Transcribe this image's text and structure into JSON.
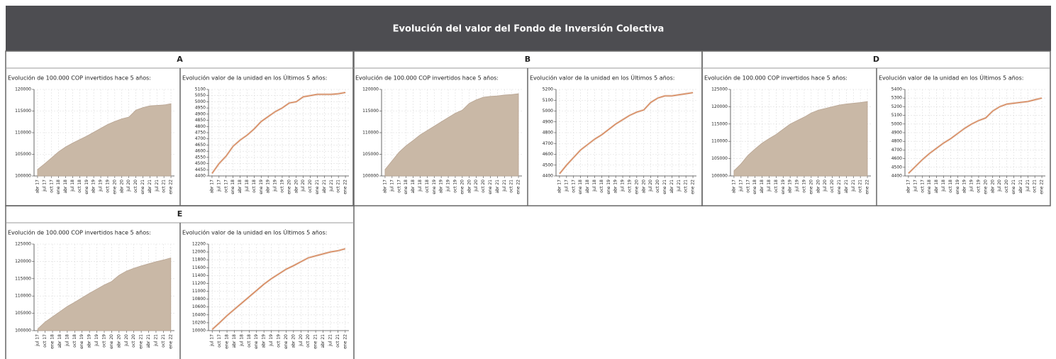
{
  "title": "Evolución del valor del Fondo de Inversión Colectiva",
  "panels": [
    {
      "label": "A",
      "charts": [
        {
          "type": "area",
          "title": "Evolución de 100.000 COP invertidos hace 5 años:",
          "color": "#c9b8a6",
          "grid": true,
          "categories": [
            "abr 17",
            "jul 17",
            "oct 17",
            "ene 18",
            "abr 18",
            "jul 18",
            "oct 18",
            "ene 19",
            "abr 19",
            "jul 19",
            "oct 19",
            "ene 20",
            "abr 20",
            "jul 20",
            "oct 20",
            "ene 21",
            "abr 21",
            "jul 21",
            "oct 21",
            "ene 22"
          ],
          "values": [
            101500,
            102800,
            104200,
            105600,
            106700,
            107600,
            108400,
            109200,
            110100,
            111000,
            111900,
            112600,
            113200,
            113600,
            115200,
            115800,
            116200,
            116300,
            116400,
            116700
          ],
          "ylim": [
            100000,
            120000
          ],
          "yticks": [
            100000,
            105000,
            110000,
            115000,
            120000
          ]
        },
        {
          "type": "line",
          "title": "Evolución valor de la unidad en los Últimos 5 años:",
          "color": "#d5733f",
          "grid": true,
          "categories": [
            "abr 17",
            "jul 17",
            "oct 17",
            "ene 18",
            "abr 18",
            "jul 18",
            "oct 18",
            "ene 19",
            "abr 19",
            "jul 19",
            "oct 19",
            "ene 20",
            "abr 20",
            "jul 20",
            "oct 20",
            "ene 21",
            "abr 21",
            "jul 21",
            "oct 21",
            "ene 22"
          ],
          "values": [
            4420,
            4500,
            4560,
            4640,
            4690,
            4730,
            4780,
            4840,
            4880,
            4920,
            4950,
            4990,
            5000,
            5040,
            5050,
            5060,
            5060,
            5060,
            5065,
            5075
          ],
          "ylim": [
            4400,
            5100
          ],
          "yticks": [
            4400,
            4450,
            4500,
            4550,
            4600,
            4650,
            4700,
            4750,
            4800,
            4850,
            4900,
            4950,
            5000,
            5050,
            5100
          ]
        }
      ]
    },
    {
      "label": "B",
      "charts": [
        {
          "type": "area",
          "title": "Evolución de 100.000 COP invertidos hace 5 años:",
          "color": "#c9b8a6",
          "grid": true,
          "categories": [
            "abr 17",
            "jul 17",
            "oct 17",
            "ene 18",
            "abr 18",
            "jul 18",
            "oct 18",
            "ene 19",
            "abr 19",
            "jul 19",
            "oct 19",
            "ene 20",
            "abr 20",
            "jul 20",
            "oct 20",
            "ene 21",
            "abr 21",
            "jul 21",
            "oct 21",
            "ene 22"
          ],
          "values": [
            101500,
            103500,
            105500,
            107000,
            108200,
            109500,
            110500,
            111500,
            112500,
            113500,
            114500,
            115200,
            116800,
            117600,
            118200,
            118400,
            118500,
            118700,
            118800,
            119000
          ],
          "ylim": [
            100000,
            120000
          ],
          "yticks": [
            100000,
            105000,
            110000,
            115000,
            120000
          ]
        },
        {
          "type": "line",
          "title": "Evolución valor de la unidad en los Últimos 5 años:",
          "color": "#d5733f",
          "grid": true,
          "categories": [
            "abr 17",
            "jul 17",
            "oct 17",
            "ene 18",
            "abr 18",
            "jul 18",
            "oct 18",
            "ene 19",
            "abr 19",
            "jul 19",
            "oct 19",
            "ene 20",
            "abr 20",
            "jul 20",
            "oct 20",
            "ene 21",
            "abr 21",
            "jul 21",
            "oct 21",
            "ene 22"
          ],
          "values": [
            4420,
            4500,
            4570,
            4640,
            4690,
            4740,
            4780,
            4830,
            4880,
            4920,
            4960,
            4990,
            5010,
            5080,
            5120,
            5140,
            5140,
            5150,
            5160,
            5170
          ],
          "ylim": [
            4400,
            5200
          ],
          "yticks": [
            4400,
            4500,
            4600,
            4700,
            4800,
            4900,
            5000,
            5100,
            5200
          ]
        }
      ]
    },
    {
      "label": "D",
      "charts": [
        {
          "type": "area",
          "title": "Evolución de 100.000 COP invertidos hace 5 años:",
          "color": "#c9b8a6",
          "grid": true,
          "categories": [
            "abr 17",
            "jul 17",
            "oct 17",
            "ene 18",
            "abr 18",
            "jul 18",
            "oct 18",
            "ene 19",
            "abr 19",
            "jul 19",
            "oct 19",
            "ene 20",
            "abr 20",
            "jul 20",
            "oct 20",
            "ene 21",
            "abr 21",
            "jul 21",
            "oct 21",
            "ene 22"
          ],
          "values": [
            101500,
            103500,
            106000,
            107800,
            109500,
            110800,
            112000,
            113500,
            115000,
            116000,
            117000,
            118200,
            119000,
            119500,
            120000,
            120500,
            120800,
            121000,
            121200,
            121500
          ],
          "ylim": [
            100000,
            125000
          ],
          "yticks": [
            100000,
            105000,
            110000,
            115000,
            120000,
            125000
          ]
        },
        {
          "type": "line",
          "title": "Evolución valor de la unidad en los Últimos 5 años:",
          "color": "#d5733f",
          "grid": true,
          "categories": [
            "abr 17",
            "jul 17",
            "oct 17",
            "ene 18",
            "abr 18",
            "jul 18",
            "oct 18",
            "ene 19",
            "abr 19",
            "jul 19",
            "oct 19",
            "ene 20",
            "abr 20",
            "jul 20",
            "oct 20",
            "ene 21",
            "abr 21",
            "jul 21",
            "oct 21",
            "ene 22"
          ],
          "values": [
            4430,
            4510,
            4590,
            4660,
            4720,
            4780,
            4830,
            4890,
            4950,
            5000,
            5040,
            5070,
            5150,
            5200,
            5230,
            5240,
            5250,
            5260,
            5280,
            5300
          ],
          "ylim": [
            4400,
            5400
          ],
          "yticks": [
            4400,
            4500,
            4600,
            4700,
            4800,
            4900,
            5000,
            5100,
            5200,
            5300,
            5400
          ]
        }
      ]
    },
    {
      "label": "E",
      "charts": [
        {
          "type": "area",
          "title": "Evolución de 100.000 COP invertidos hace 5 años:",
          "color": "#c9b8a6",
          "grid": true,
          "categories": [
            "jul 17",
            "oct 17",
            "ene 18",
            "abr 18",
            "jul 18",
            "oct 18",
            "ene 19",
            "abr 19",
            "jul 19",
            "oct 19",
            "ene 20",
            "abr 20",
            "jul 20",
            "oct 20",
            "ene 21",
            "abr 21",
            "jul 21",
            "oct 21",
            "ene 22"
          ],
          "values": [
            100500,
            102500,
            104000,
            105500,
            107000,
            108200,
            109500,
            110800,
            112000,
            113200,
            114200,
            116000,
            117200,
            118000,
            118700,
            119300,
            119900,
            120400,
            121000
          ],
          "ylim": [
            100000,
            125000
          ],
          "yticks": [
            100000,
            105000,
            110000,
            115000,
            120000,
            125000
          ]
        },
        {
          "type": "line",
          "title": "Evolución valor de la unidad en los Últimos 5 años:",
          "color": "#d5733f",
          "grid": true,
          "categories": [
            "jul 17",
            "oct 17",
            "ene 18",
            "abr 18",
            "jul 18",
            "oct 18",
            "ene 19",
            "abr 19",
            "jul 19",
            "oct 19",
            "ene 20",
            "abr 20",
            "jul 20",
            "oct 20",
            "ene 21",
            "abr 21",
            "jul 21",
            "oct 21",
            "ene 22"
          ],
          "values": [
            10030,
            10200,
            10380,
            10540,
            10700,
            10860,
            11020,
            11180,
            11320,
            11440,
            11560,
            11650,
            11750,
            11850,
            11900,
            11950,
            12000,
            12030,
            12080
          ],
          "ylim": [
            10000,
            12200
          ],
          "yticks": [
            10000,
            10200,
            10400,
            10600,
            10800,
            11000,
            11200,
            11400,
            11600,
            11800,
            12000,
            12200
          ]
        }
      ]
    }
  ]
}
